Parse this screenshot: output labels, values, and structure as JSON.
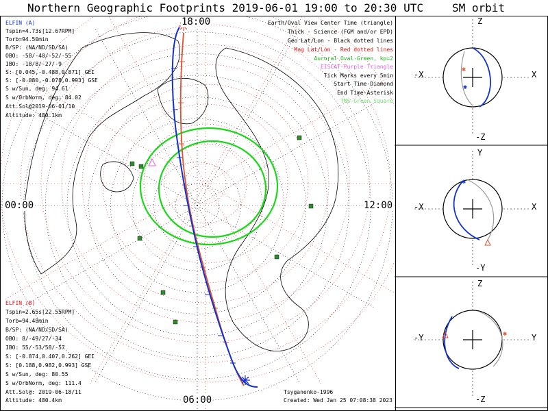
{
  "title": "Northern Geographic Footprints 2019-06-01 19:00 to 20:30 UTC",
  "sm_title": "SM orbit",
  "hour_labels": {
    "top": "18:00",
    "left": "00:00",
    "right": "12:00",
    "bottom": "06:00"
  },
  "elfin_a": {
    "name": "ELFIN (A)",
    "lines": [
      "Tspin=4.73s[12.67RPM]",
      "Torb=94.50min",
      "B/SP: (NA/ND/SD/SA)",
      "OBO: -58/-40/-52/-55",
      "IBO: -18/8/-27/-9",
      "S: [0.045,-0.488,0.871] GEI",
      "S: [-0.080,-0.078,0.993] GSE",
      "S w/Sun, deg: 94.61",
      "S w/OrbNorm, deg: 84.02",
      "Att.Sol@2019-06-01/10",
      "Altitude: 480.1km"
    ]
  },
  "elfin_b": {
    "name": "ELFIN (B)",
    "lines": [
      "Tspin=2.65s[22.55RPM]",
      "Torb=94.48min",
      "B/SP: (NA/ND/SD/SA)",
      "OBO: 8/-49/27/-34",
      "IBO: 55/-53/58/-57",
      "S: [-0.874,0.407,0.262] GEI",
      "S: [0.188,0.982,0.993] GSE",
      "S w/Sun, deg: 80.55",
      "S w/OrbNorm, deg: 111.4",
      "Att.Sol@: 2019-06-18/11",
      "Altitude: 480.4km"
    ]
  },
  "legend": [
    {
      "text": "Earth/Oval View Center Time (triangle)",
      "color": "#000000"
    },
    {
      "text": "Thick - Science (FGM and/or EPD)",
      "color": "#000000"
    },
    {
      "text": "Geo Lat/Lon - Black dotted lines",
      "color": "#000000"
    },
    {
      "text": "Mag Lat/Lon - Red dotted lines",
      "color": "#e01010"
    },
    {
      "text": "Auroral Oval-Green, kp=2",
      "color": "#18b818"
    },
    {
      "text": "EISCAT-Purple Triangle",
      "color": "#e060e0"
    },
    {
      "text": "Tick Marks every 5min",
      "color": "#000000"
    },
    {
      "text": "Start Time-Diamond",
      "color": "#000000"
    },
    {
      "text": "End Time-Asterisk",
      "color": "#000000"
    },
    {
      "text": "TMS-Green Square",
      "color": "#70e070"
    }
  ],
  "credit": "Tsyganenko-1996",
  "created": "Created: Wed Jan 25 07:08:38 2023",
  "sm_panels": [
    {
      "top": "Z",
      "bottom": "-Z",
      "left": "-X",
      "right": "X"
    },
    {
      "top": "Y",
      "bottom": "-Y",
      "left": "-X",
      "right": "X"
    },
    {
      "top": "Z",
      "bottom": "-Z",
      "left": "-Y",
      "right": "Y"
    }
  ],
  "colors": {
    "elfin_a": "#1030d0",
    "elfin_b": "#e05030",
    "oval": "#18d818",
    "mag_grid": "#e01010",
    "tms": "#2e8b2e",
    "eiscat": "#e060e0"
  },
  "chart_data": {
    "type": "map",
    "projection": "north polar stereographic, geographic",
    "time_range": [
      "2019-06-01 19:00",
      "2019-06-01 20:30"
    ],
    "series": [
      {
        "name": "ELFIN (A)",
        "color": "blue"
      },
      {
        "name": "ELFIN (B)",
        "color": "red"
      }
    ],
    "auroral_oval_kp": 2,
    "tick_interval_min": 5
  }
}
